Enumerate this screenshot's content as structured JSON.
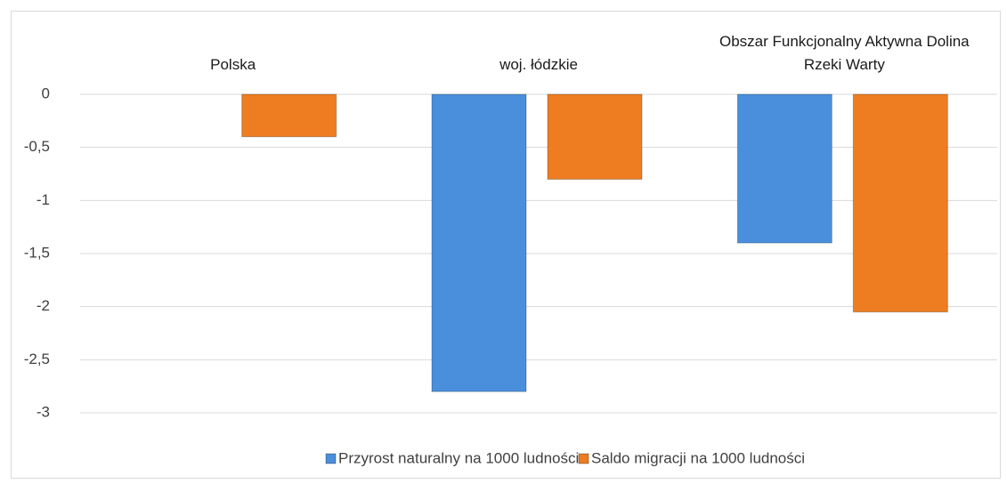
{
  "chart_data": {
    "type": "bar",
    "categories": [
      "Polska",
      "woj. łódzkie",
      "Obszar Funkcjonalny Aktywna Dolina Rzeki Warty"
    ],
    "series": [
      {
        "name": "Przyrost naturalny na 1000 ludności",
        "color": "#4a8fdb",
        "values": [
          0,
          -2.8,
          -1.4
        ]
      },
      {
        "name": "Saldo migracji na 1000 ludności",
        "color": "#ee7d21",
        "values": [
          -0.4,
          -0.8,
          -2.05
        ]
      }
    ],
    "ylim": [
      -3,
      0
    ],
    "yticks": [
      0,
      {
        "value": -0.5,
        "label": "-0,5"
      },
      -1,
      {
        "value": -1.5,
        "label": "-1,5"
      },
      -2,
      {
        "value": -2.5,
        "label": "-2,5"
      },
      -3
    ],
    "grid": true,
    "legend": "bottom"
  }
}
